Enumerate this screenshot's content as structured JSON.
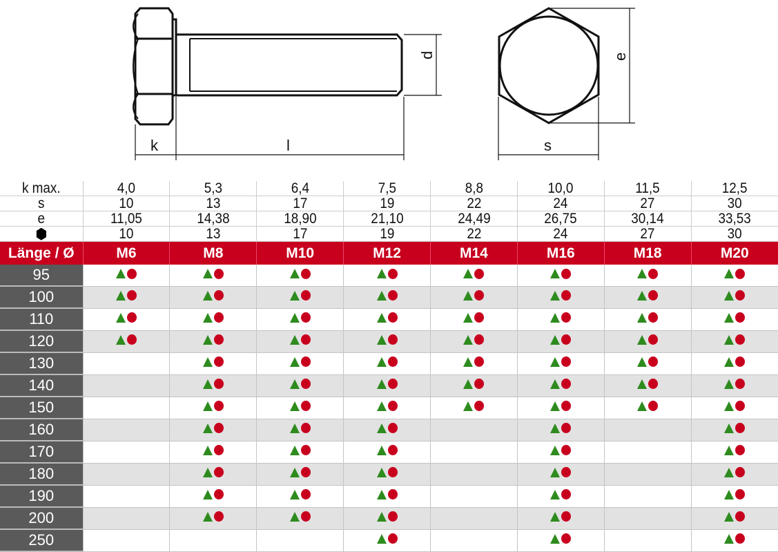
{
  "drawing": {
    "labels": {
      "k": "k",
      "l": "l",
      "d": "d",
      "e": "e",
      "s": "s"
    }
  },
  "spec_rows": [
    {
      "label": "k max.",
      "values": [
        "4,0",
        "5,3",
        "6,4",
        "7,5",
        "8,8",
        "10,0",
        "11,5",
        "12,5"
      ]
    },
    {
      "label": "s",
      "values": [
        "10",
        "13",
        "17",
        "19",
        "22",
        "24",
        "27",
        "30"
      ]
    },
    {
      "label": "e",
      "values": [
        "11,05",
        "14,38",
        "18,90",
        "21,10",
        "24,49",
        "26,75",
        "30,14",
        "33,53"
      ]
    },
    {
      "label": "",
      "icon": "hexagon-icon",
      "values": [
        "10",
        "13",
        "17",
        "19",
        "22",
        "24",
        "27",
        "30"
      ]
    }
  ],
  "header": {
    "label": "Länge / Ø",
    "sizes": [
      "M6",
      "M8",
      "M10",
      "M12",
      "M14",
      "M16",
      "M18",
      "M20"
    ]
  },
  "legend_icons": [
    "green-triangle-icon",
    "red-circle-icon"
  ],
  "colors": {
    "red": "#c8001e",
    "green": "#2e8b1e",
    "row_label_bg": "#5a5a5a"
  },
  "rows": [
    {
      "length": "95",
      "available": [
        1,
        1,
        1,
        1,
        1,
        1,
        1,
        1
      ]
    },
    {
      "length": "100",
      "available": [
        1,
        1,
        1,
        1,
        1,
        1,
        1,
        1
      ]
    },
    {
      "length": "110",
      "available": [
        1,
        1,
        1,
        1,
        1,
        1,
        1,
        1
      ]
    },
    {
      "length": "120",
      "available": [
        1,
        1,
        1,
        1,
        1,
        1,
        1,
        1
      ]
    },
    {
      "length": "130",
      "available": [
        0,
        1,
        1,
        1,
        1,
        1,
        1,
        1
      ]
    },
    {
      "length": "140",
      "available": [
        0,
        1,
        1,
        1,
        1,
        1,
        1,
        1
      ]
    },
    {
      "length": "150",
      "available": [
        0,
        1,
        1,
        1,
        1,
        1,
        1,
        1
      ]
    },
    {
      "length": "160",
      "available": [
        0,
        1,
        1,
        1,
        0,
        1,
        0,
        1
      ]
    },
    {
      "length": "170",
      "available": [
        0,
        1,
        1,
        1,
        0,
        1,
        0,
        1
      ]
    },
    {
      "length": "180",
      "available": [
        0,
        1,
        1,
        1,
        0,
        1,
        0,
        1
      ]
    },
    {
      "length": "190",
      "available": [
        0,
        1,
        1,
        1,
        0,
        1,
        0,
        1
      ]
    },
    {
      "length": "200",
      "available": [
        0,
        1,
        1,
        1,
        0,
        1,
        0,
        1
      ]
    },
    {
      "length": "250",
      "available": [
        0,
        0,
        0,
        1,
        0,
        1,
        0,
        1
      ]
    }
  ]
}
